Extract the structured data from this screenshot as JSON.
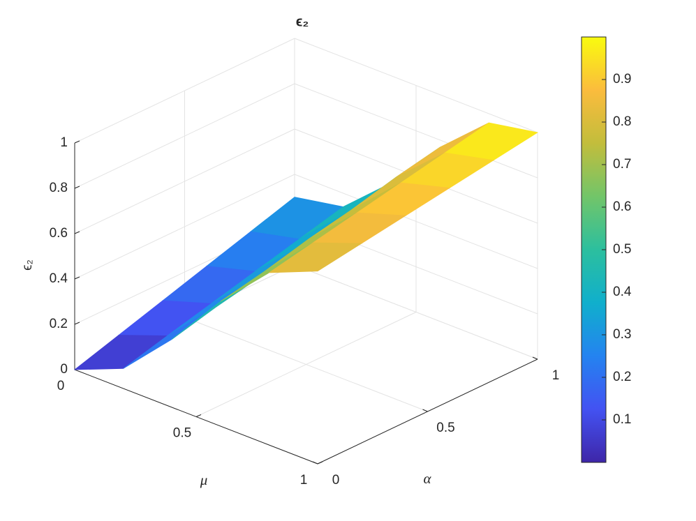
{
  "chart_data": {
    "type": "surface",
    "title": "ϵ₂",
    "xlabel": "μ",
    "ylabel": "α",
    "zlabel": "ϵ₂",
    "x": [
      0,
      0.2,
      0.4,
      0.6,
      0.8,
      1
    ],
    "y": [
      0,
      0.2,
      0.4,
      0.6,
      0.8,
      1
    ],
    "z": [
      [
        0,
        0.06,
        0.12,
        0.18,
        0.24,
        0.3
      ],
      [
        0.088,
        0.14,
        0.19,
        0.24,
        0.29,
        0.34
      ],
      [
        0.3,
        0.35,
        0.39,
        0.44,
        0.49,
        0.53
      ],
      [
        0.55,
        0.59,
        0.64,
        0.68,
        0.73,
        0.77
      ],
      [
        0.76,
        0.8,
        0.84,
        0.88,
        0.92,
        0.96
      ],
      [
        0.85,
        0.88,
        0.91,
        0.94,
        0.97,
        1.0
      ]
    ],
    "xlim": [
      0,
      1
    ],
    "ylim": [
      0,
      1
    ],
    "zlim": [
      0,
      1
    ],
    "xticks": [
      0,
      0.5,
      1
    ],
    "yticks": [
      0,
      0.5,
      1
    ],
    "zticks": [
      0,
      0.2,
      0.4,
      0.6,
      0.8,
      1
    ],
    "grid": true,
    "colormap": [
      "#3e26a8",
      "#4352f2",
      "#2483f0",
      "#10afcc",
      "#2cbf9e",
      "#72c569",
      "#c2bd3c",
      "#fbbc3d",
      "#f9fb0e"
    ],
    "clim": [
      0,
      1
    ],
    "colorbar": {
      "ticks": [
        0.1,
        0.2,
        0.3,
        0.4,
        0.5,
        0.6,
        0.7,
        0.8,
        0.9
      ]
    }
  }
}
